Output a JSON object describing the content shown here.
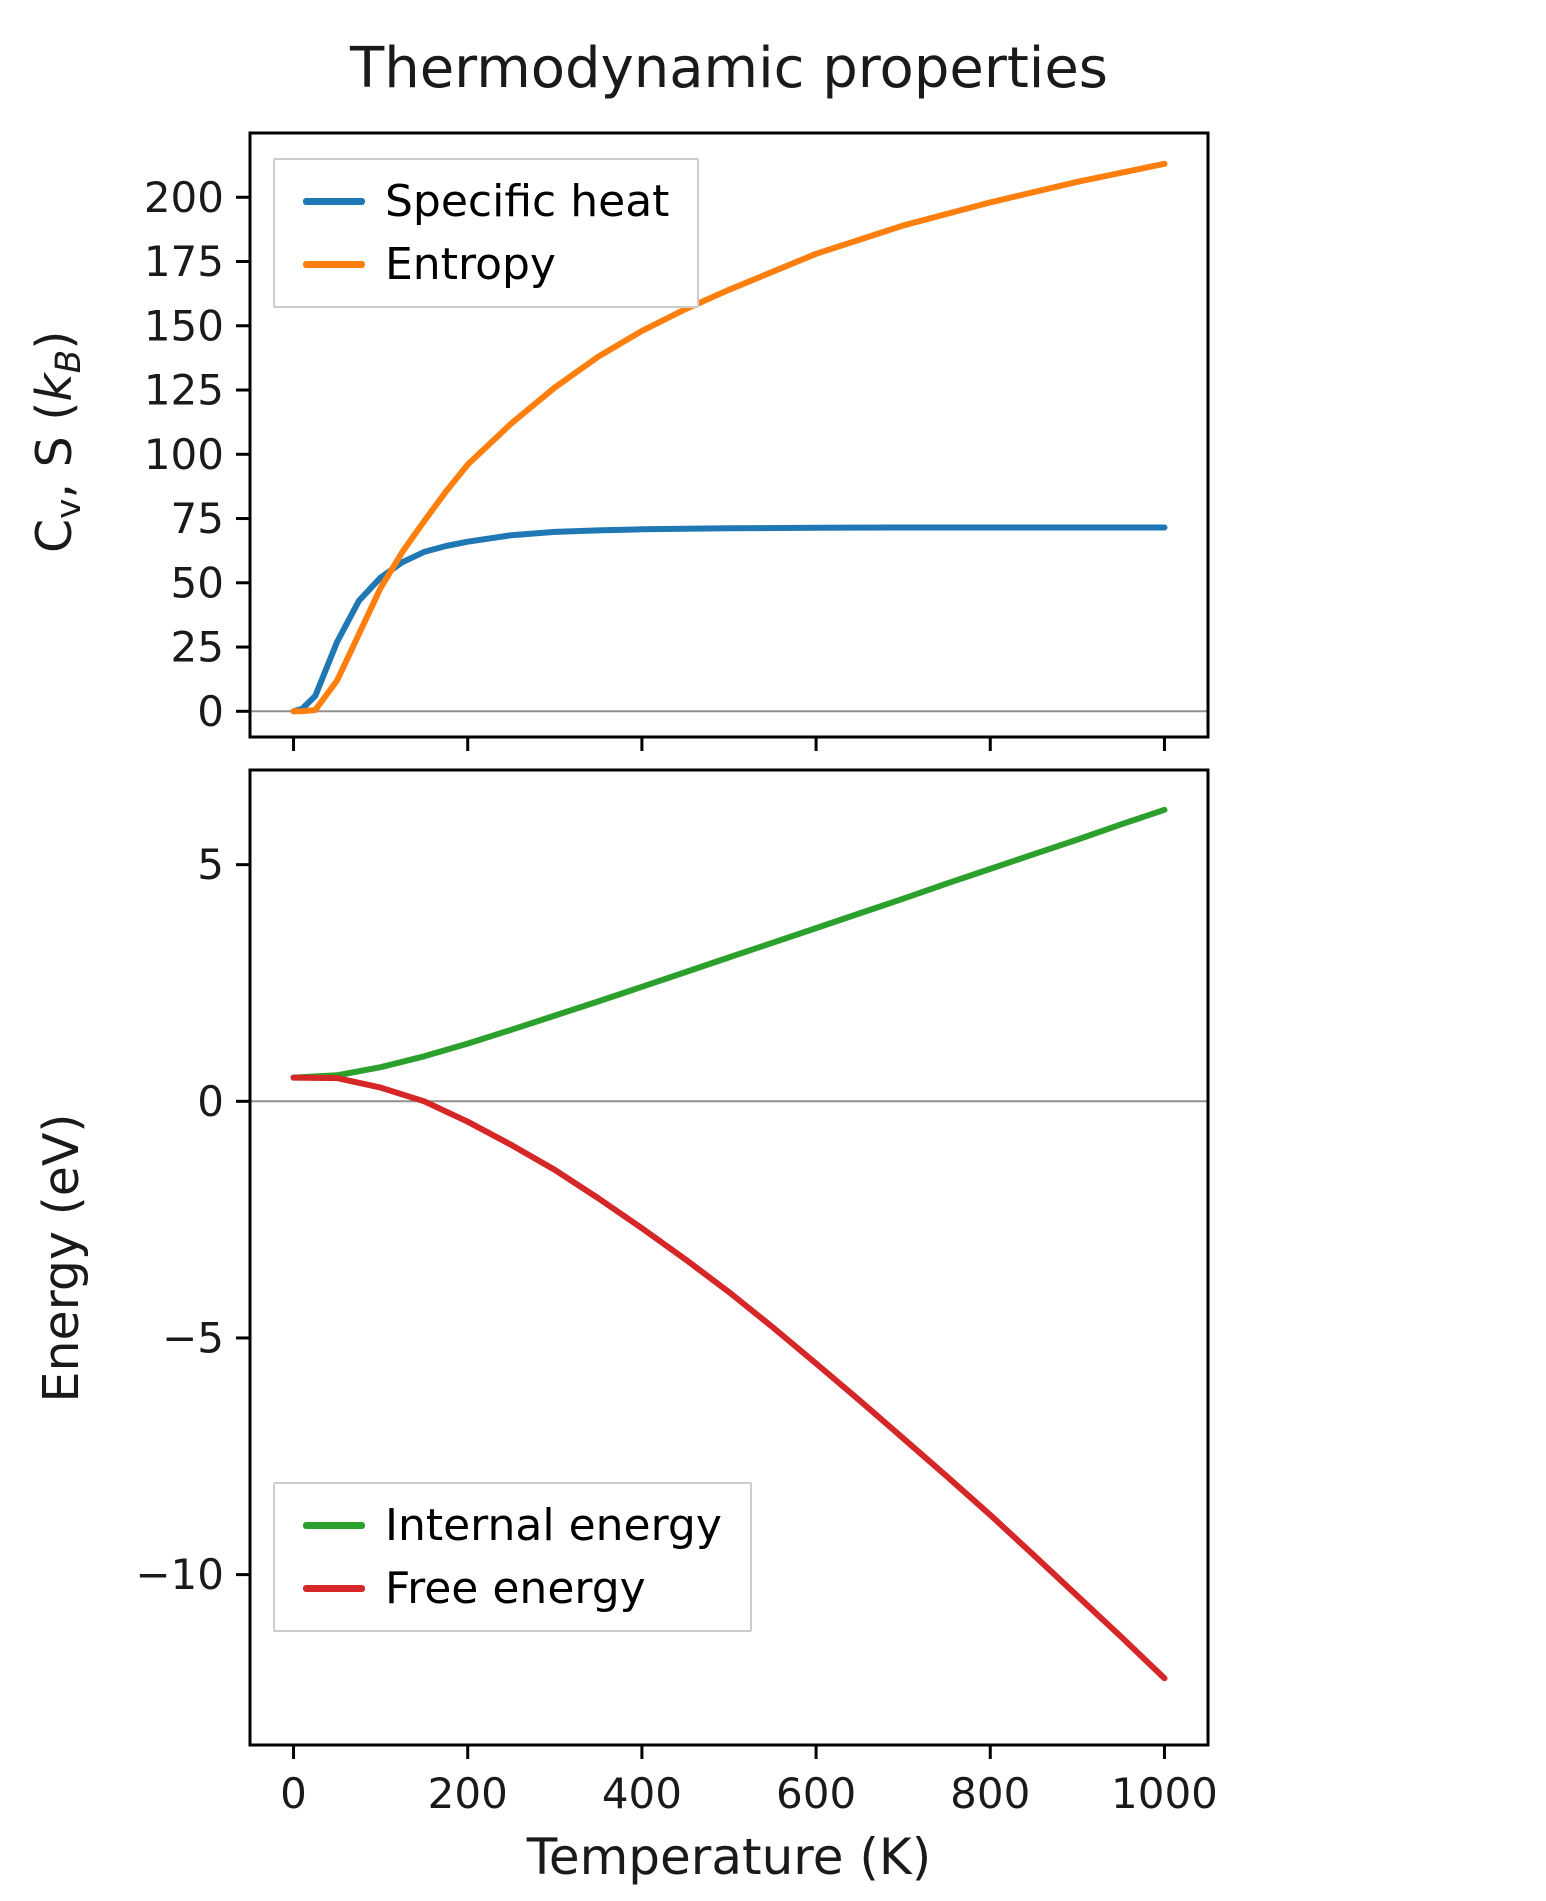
{
  "figure": {
    "title": "Thermodynamic properties",
    "background": "#ffffff",
    "text_color": "#1a1a1a"
  },
  "colors": {
    "specific_heat": "#1f77b4",
    "entropy": "#ff7f0e",
    "internal_energy": "#2ca02c",
    "free_energy": "#d62728",
    "zero_line": "#909090",
    "axis": "#000000",
    "legend_border": "#cccccc"
  },
  "chart_data": [
    {
      "type": "line",
      "title": "Thermodynamic properties",
      "xlabel": "",
      "ylabel": "Cv, S (kB)",
      "ylabel_segments": [
        {
          "text": "C"
        },
        {
          "text": "v",
          "sub": true
        },
        {
          "text": ", S ("
        },
        {
          "text": "k",
          "italic": true
        },
        {
          "text": "B",
          "sub": true,
          "italic": true
        },
        {
          "text": ")"
        }
      ],
      "xlim": [
        -50,
        1050
      ],
      "ylim": [
        -10,
        225
      ],
      "xticks": [
        0,
        200,
        400,
        600,
        800,
        1000
      ],
      "yticks": [
        0,
        25,
        50,
        75,
        100,
        125,
        150,
        175,
        200
      ],
      "show_xtick_labels": false,
      "zero_line": true,
      "grid": false,
      "legend_position": "top-left",
      "x": [
        0,
        10,
        25,
        50,
        75,
        100,
        125,
        150,
        175,
        200,
        250,
        300,
        350,
        400,
        450,
        500,
        600,
        700,
        800,
        900,
        1000
      ],
      "series": [
        {
          "name": "Specific heat",
          "color": "#1f77b4",
          "values": [
            0,
            1,
            6,
            27,
            43,
            52,
            58,
            62,
            64.3,
            66,
            68.5,
            69.8,
            70.4,
            70.8,
            71.0,
            71.2,
            71.4,
            71.5,
            71.5,
            71.5,
            71.5
          ]
        },
        {
          "name": "Entropy",
          "color": "#ff7f0e",
          "values": [
            0,
            0.05,
            0.5,
            12,
            30,
            48,
            62,
            74,
            85.5,
            96,
            112,
            126,
            138,
            148,
            156.5,
            164,
            178,
            189,
            198,
            206,
            213
          ]
        }
      ]
    },
    {
      "type": "line",
      "title": "",
      "xlabel": "Temperature (K)",
      "ylabel": "Energy (eV)",
      "ylabel_segments": [
        {
          "text": "Energy (eV)"
        }
      ],
      "xlim": [
        -50,
        1050
      ],
      "ylim": [
        -13.6,
        7
      ],
      "xticks": [
        0,
        200,
        400,
        600,
        800,
        1000
      ],
      "yticks": [
        5,
        0,
        -5,
        -10
      ],
      "show_xtick_labels": true,
      "zero_line": true,
      "grid": false,
      "legend_position": "bottom-left",
      "x": [
        0,
        50,
        100,
        150,
        200,
        250,
        300,
        350,
        400,
        450,
        500,
        550,
        600,
        650,
        700,
        750,
        800,
        850,
        900,
        950,
        1000
      ],
      "series": [
        {
          "name": "Internal energy",
          "color": "#2ca02c",
          "values": [
            0.5,
            0.55,
            0.72,
            0.95,
            1.22,
            1.51,
            1.81,
            2.11,
            2.42,
            2.73,
            3.04,
            3.35,
            3.66,
            3.97,
            4.28,
            4.6,
            4.91,
            5.22,
            5.53,
            5.85,
            6.16
          ]
        },
        {
          "name": "Free energy",
          "color": "#d62728",
          "values": [
            0.5,
            0.49,
            0.29,
            0.0,
            -0.43,
            -0.92,
            -1.45,
            -2.05,
            -2.68,
            -3.34,
            -4.03,
            -4.77,
            -5.54,
            -6.32,
            -7.12,
            -7.92,
            -8.74,
            -9.59,
            -10.45,
            -11.31,
            -12.19
          ]
        }
      ]
    }
  ]
}
